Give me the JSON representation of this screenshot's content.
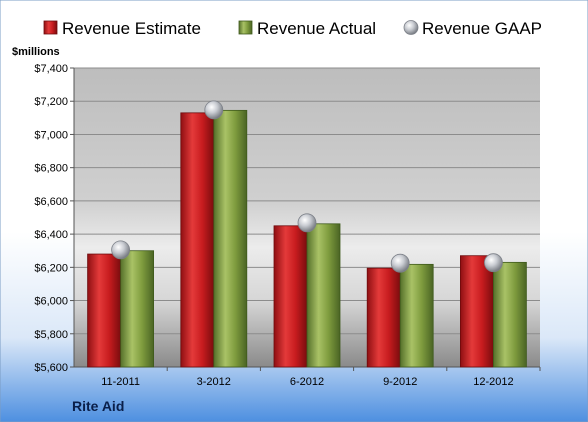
{
  "chart_data": {
    "type": "bar",
    "ylabel": "$millions",
    "company": "Rite Aid",
    "categories": [
      "11-2011",
      "3-2012",
      "6-2012",
      "9-2012",
      "12-2012"
    ],
    "yticks": [
      "$5,600",
      "$5,800",
      "$6,000",
      "$6,200",
      "$6,400",
      "$6,600",
      "$6,800",
      "$7,000",
      "$7,200",
      "$7,400"
    ],
    "ylim": [
      5600,
      7400
    ],
    "ystep": 200,
    "grid": true,
    "legend": "top",
    "series": [
      {
        "name": "Revenue Estimate",
        "type": "bar",
        "color": "#cc1f1f",
        "values": [
          6280,
          7130,
          6450,
          6195,
          6270
        ]
      },
      {
        "name": "Revenue Actual",
        "type": "bar",
        "color": "#7f9e3c",
        "values": [
          6300,
          7145,
          6462,
          6218,
          6230
        ]
      },
      {
        "name": "Revenue GAAP",
        "type": "marker",
        "color": "#b9bcc2",
        "values": [
          6305,
          7148,
          6468,
          6225,
          6228
        ]
      }
    ]
  }
}
